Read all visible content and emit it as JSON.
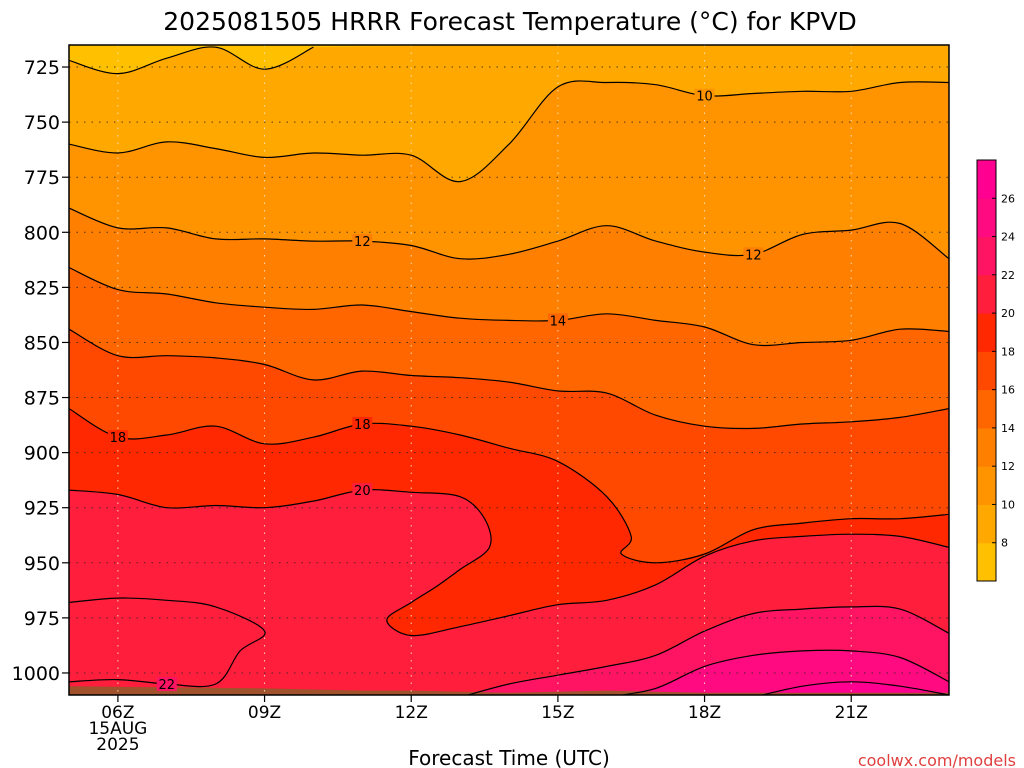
{
  "chart_data": {
    "type": "contour",
    "title": "2025081505 HRRR Forecast Temperature (°C) for KPVD",
    "xlabel": "Forecast Time (UTC)",
    "ylabel": "",
    "x_ticks": [
      {
        "hour": 6,
        "lines": [
          "06Z",
          "15AUG",
          "2025"
        ]
      },
      {
        "hour": 9,
        "lines": [
          "09Z"
        ]
      },
      {
        "hour": 12,
        "lines": [
          "12Z"
        ]
      },
      {
        "hour": 15,
        "lines": [
          "15Z"
        ]
      },
      {
        "hour": 18,
        "lines": [
          "18Z"
        ]
      },
      {
        "hour": 21,
        "lines": [
          "21Z"
        ]
      }
    ],
    "xlim": [
      5,
      23
    ],
    "y_ticks": [
      725,
      750,
      775,
      800,
      825,
      850,
      875,
      900,
      925,
      950,
      975,
      1000
    ],
    "ylim": [
      1010,
      715
    ],
    "y_inverted": true,
    "grid": true,
    "colorbar": {
      "levels": [
        6,
        8,
        10,
        12,
        14,
        16,
        18,
        20,
        22,
        24,
        26,
        28
      ],
      "tick_labels": [
        "8",
        "10",
        "12",
        "14",
        "16",
        "18",
        "20",
        "22",
        "24",
        "26"
      ],
      "colors": [
        "#ffc000",
        "#ffa800",
        "#ff9300",
        "#ff7f00",
        "#ff6600",
        "#ff4800",
        "#ff2800",
        "#ff1e3c",
        "#ff1464",
        "#ff0a80",
        "#ff0090"
      ],
      "placement": "right"
    },
    "ground_color": "#a0522d",
    "contours": [
      {
        "level": 8,
        "points": [
          [
            5,
            722
          ],
          [
            6,
            728
          ],
          [
            7,
            721
          ],
          [
            8,
            716
          ],
          [
            9,
            726
          ],
          [
            10,
            716
          ]
        ]
      },
      {
        "level": 10,
        "points": [
          [
            5,
            760
          ],
          [
            6,
            764
          ],
          [
            7,
            759
          ],
          [
            8,
            762
          ],
          [
            9,
            766
          ],
          [
            10,
            764
          ],
          [
            11,
            765
          ],
          [
            12,
            765
          ],
          [
            13,
            777
          ],
          [
            14,
            760
          ],
          [
            15,
            734
          ],
          [
            16,
            732
          ],
          [
            17,
            733
          ],
          [
            18,
            738
          ],
          [
            19,
            737
          ],
          [
            20,
            736
          ],
          [
            21,
            736
          ],
          [
            22,
            732
          ],
          [
            23,
            732
          ]
        ],
        "labels": [
          [
            18,
            738
          ]
        ]
      },
      {
        "level": 12,
        "points": [
          [
            5,
            789
          ],
          [
            6,
            798
          ],
          [
            7,
            798
          ],
          [
            8,
            803
          ],
          [
            9,
            803
          ],
          [
            10,
            804
          ],
          [
            11,
            804
          ],
          [
            12,
            806
          ],
          [
            13,
            812
          ],
          [
            14,
            810
          ],
          [
            15,
            804
          ],
          [
            16,
            797
          ],
          [
            17,
            804
          ],
          [
            18,
            809
          ],
          [
            19,
            810
          ],
          [
            20,
            801
          ],
          [
            21,
            799
          ],
          [
            22,
            796
          ],
          [
            23,
            812
          ]
        ],
        "labels": [
          [
            11,
            804
          ],
          [
            19,
            810
          ]
        ]
      },
      {
        "level": 14,
        "points": [
          [
            5,
            816
          ],
          [
            6,
            826
          ],
          [
            7,
            828
          ],
          [
            8,
            832
          ],
          [
            9,
            834
          ],
          [
            10,
            835
          ],
          [
            11,
            833
          ],
          [
            12,
            836
          ],
          [
            13,
            839
          ],
          [
            14,
            840
          ],
          [
            15,
            840
          ],
          [
            16,
            837
          ],
          [
            17,
            840
          ],
          [
            18,
            843
          ],
          [
            19,
            851
          ],
          [
            20,
            850
          ],
          [
            21,
            849
          ],
          [
            22,
            844
          ],
          [
            23,
            845
          ]
        ],
        "labels": [
          [
            15,
            840
          ]
        ]
      },
      {
        "level": 16,
        "points": [
          [
            5,
            844
          ],
          [
            6,
            856
          ],
          [
            7,
            856
          ],
          [
            8,
            857
          ],
          [
            9,
            860
          ],
          [
            10,
            867
          ],
          [
            11,
            863
          ],
          [
            12,
            865
          ],
          [
            13,
            866
          ],
          [
            14,
            868
          ],
          [
            15,
            872
          ],
          [
            16,
            873
          ],
          [
            17,
            883
          ],
          [
            18,
            888
          ],
          [
            19,
            889
          ],
          [
            20,
            887
          ],
          [
            21,
            886
          ],
          [
            22,
            884
          ],
          [
            23,
            880
          ]
        ]
      },
      {
        "level": 18,
        "points": [
          [
            5,
            880
          ],
          [
            6,
            893
          ],
          [
            7,
            892
          ],
          [
            8,
            888
          ],
          [
            9,
            896
          ],
          [
            10,
            893
          ],
          [
            11,
            887
          ],
          [
            12,
            888
          ],
          [
            13,
            892
          ],
          [
            14,
            898
          ],
          [
            15,
            904
          ],
          [
            16,
            920
          ],
          [
            16.5,
            938
          ],
          [
            16.3,
            946
          ],
          [
            17,
            950
          ],
          [
            18,
            946
          ],
          [
            19,
            935
          ],
          [
            20,
            932
          ],
          [
            21,
            930
          ],
          [
            22,
            930
          ],
          [
            23,
            928
          ]
        ],
        "labels": [
          [
            6,
            893
          ],
          [
            11,
            887
          ]
        ]
      },
      {
        "level": 20,
        "points": [
          [
            5,
            917
          ],
          [
            6,
            919
          ],
          [
            7,
            925
          ],
          [
            8,
            924
          ],
          [
            9,
            925
          ],
          [
            10,
            922
          ],
          [
            11,
            917
          ],
          [
            12,
            918
          ],
          [
            13,
            920
          ],
          [
            13.5,
            930
          ],
          [
            13.6,
            943
          ],
          [
            13,
            953
          ],
          [
            12.5,
            961
          ],
          [
            12,
            968
          ],
          [
            11.5,
            976
          ],
          [
            12,
            983
          ],
          [
            13,
            979
          ],
          [
            14,
            974
          ],
          [
            15,
            969
          ],
          [
            16,
            967
          ],
          [
            17,
            960
          ],
          [
            18,
            947
          ],
          [
            19,
            940
          ],
          [
            20,
            938
          ],
          [
            21,
            937
          ],
          [
            22,
            938
          ],
          [
            23,
            943
          ]
        ],
        "labels": [
          [
            11,
            917
          ]
        ]
      },
      {
        "level": 22,
        "points": [
          [
            5,
            968
          ],
          [
            6,
            966
          ],
          [
            7,
            967
          ],
          [
            8,
            970
          ],
          [
            9,
            981
          ],
          [
            8.5,
            990
          ],
          [
            8,
            1005
          ],
          [
            7,
            1005
          ],
          [
            6,
            1003
          ],
          [
            5,
            1004
          ]
        ],
        "labels": [
          [
            7,
            1005
          ]
        ]
      },
      {
        "level": 24,
        "points": [
          [
            13,
            1011
          ],
          [
            14,
            1005
          ],
          [
            15,
            1001
          ],
          [
            16,
            997
          ],
          [
            17,
            992
          ],
          [
            18,
            981
          ],
          [
            19,
            973
          ],
          [
            20,
            971
          ],
          [
            21,
            970
          ],
          [
            22,
            971
          ],
          [
            23,
            982
          ]
        ]
      },
      {
        "level": 26,
        "points": [
          [
            16,
            1011
          ],
          [
            17,
            1007
          ],
          [
            18,
            997
          ],
          [
            19,
            992
          ],
          [
            20,
            990
          ],
          [
            21,
            990
          ],
          [
            22,
            993
          ],
          [
            23,
            1004
          ]
        ]
      },
      {
        "level": 28,
        "points": [
          [
            19,
            1011
          ],
          [
            20,
            1006
          ],
          [
            21,
            1004
          ],
          [
            22,
            1006
          ],
          [
            23,
            1010
          ]
        ]
      }
    ]
  },
  "credit": "coolwx.com/models"
}
